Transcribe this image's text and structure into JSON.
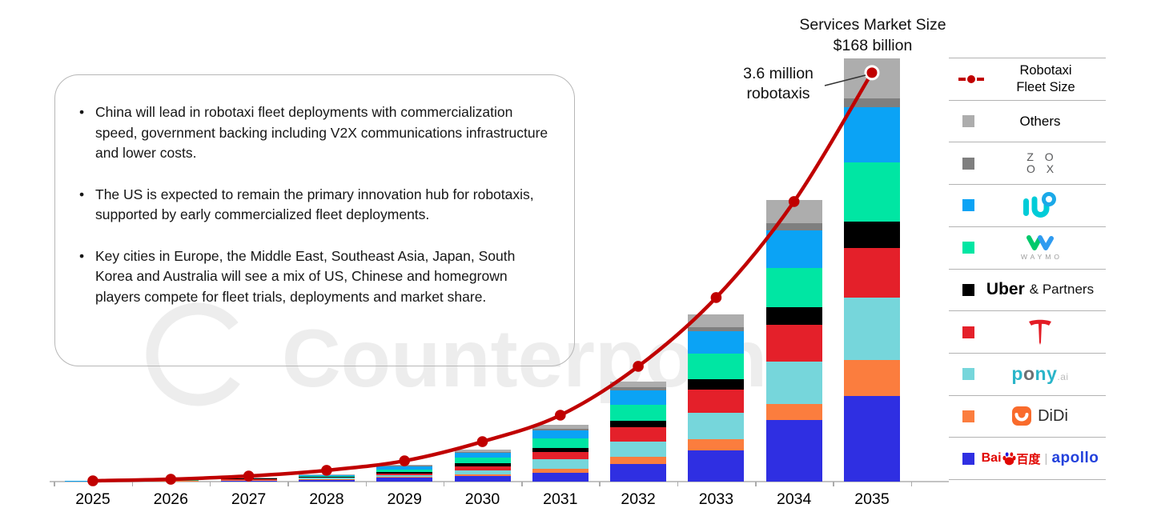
{
  "colors": {
    "baidu": "#2f2fe2",
    "didi": "#fb7d3e",
    "pony": "#76d6db",
    "tesla": "#e4202a",
    "uber": "#000000",
    "waymo": "#00e6a3",
    "weride": "#0ba3f5",
    "zoox": "#7f7f7f",
    "others": "#adadad",
    "line": "#c00000"
  },
  "watermark": {
    "text": "Counterpoint"
  },
  "insights": {
    "bullets": [
      "China will lead in robotaxi fleet deployments with commercialization speed, government backing including V2X communications infrastructure and lower costs.",
      "The US is expected to remain the primary innovation hub for robotaxis, supported by early commercialized fleet deployments.",
      "Key cities in Europe, the Middle East, Southeast Asia, Japan, South Korea and Australia will see a mix of US, Chinese and homegrown players compete for fleet trials, deployments and market share."
    ]
  },
  "annotations": {
    "market_size_line1": "Services Market Size",
    "market_size_line2": "$168 billion",
    "callout_line1": "3.6 million",
    "callout_line2": "robotaxis"
  },
  "legend": {
    "fleet_label_1": "Robotaxi",
    "fleet_label_2": "Fleet Size",
    "others": "Others",
    "zoox_1": "Z O",
    "zoox_2": "O X",
    "waymo_wordmark": "WAYMO",
    "uber_main": "Uber",
    "uber_suffix": "& Partners",
    "pony_p": "p",
    "pony_o": "o",
    "pony_n": "n",
    "pony_y": "y",
    "pony_ai": ".ai",
    "didi": "DiDi",
    "baidu_latin": "Bai",
    "baidu_cjk": "百度",
    "separator": "|",
    "apollo": "apollo"
  },
  "chart_data": {
    "type": "bar",
    "subtype": "stacked-bars-with-line-overlay",
    "categories": [
      "2025",
      "2026",
      "2027",
      "2028",
      "2029",
      "2030",
      "2031",
      "2032",
      "2033",
      "2034",
      "2035"
    ],
    "value_unit": "thousand robotaxis (estimated from bar heights)",
    "series": [
      {
        "name": "Baidu Apollo",
        "color": "#2f2fe2",
        "values": [
          4,
          6,
          11,
          18,
          32,
          49,
          78,
          155,
          275,
          543,
          754
        ]
      },
      {
        "name": "DiDi",
        "color": "#fb7d3e",
        "values": [
          1,
          2,
          4,
          5,
          7,
          14,
          35,
          63,
          99,
          141,
          317
        ]
      },
      {
        "name": "Pony.ai",
        "color": "#76d6db",
        "values": [
          2,
          4,
          7,
          14,
          21,
          35,
          85,
          134,
          233,
          374,
          550
        ]
      },
      {
        "name": "Tesla",
        "color": "#e4202a",
        "values": [
          0,
          1,
          2,
          5,
          14,
          35,
          63,
          127,
          204,
          324,
          437
        ]
      },
      {
        "name": "Uber & Partners",
        "color": "#000000",
        "values": [
          0,
          1,
          1,
          3,
          11,
          28,
          35,
          56,
          92,
          155,
          233
        ]
      },
      {
        "name": "Waymo",
        "color": "#00e6a3",
        "values": [
          2,
          2,
          7,
          8,
          18,
          49,
          85,
          141,
          226,
          345,
          522
        ]
      },
      {
        "name": "WeRide",
        "color": "#0ba3f5",
        "values": [
          1,
          2,
          3,
          7,
          35,
          42,
          70,
          127,
          197,
          331,
          486
        ]
      },
      {
        "name": "Zoox",
        "color": "#7f7f7f",
        "values": [
          0,
          0,
          0,
          1,
          2,
          7,
          14,
          28,
          35,
          63,
          78
        ]
      },
      {
        "name": "Others",
        "color": "#adadad",
        "values": [
          0,
          0,
          1,
          4,
          11,
          21,
          35,
          49,
          113,
          204,
          352
        ]
      }
    ],
    "line": {
      "name": "Robotaxi Fleet Size",
      "color": "#c00000",
      "values": [
        7,
        21,
        49,
        99,
        183,
        352,
        585,
        1015,
        1621,
        2467,
        3602
      ]
    },
    "annotations": [
      "3.6 million robotaxis in 2035",
      "Services Market Size $168 billion in 2035"
    ],
    "xlabel": "",
    "ylabel": "",
    "grid": false,
    "legend_position": "right"
  }
}
